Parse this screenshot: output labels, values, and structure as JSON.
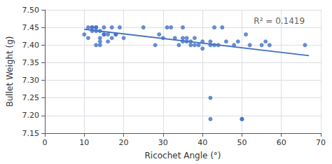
{
  "chart_data": {
    "type": "scatter",
    "xlabel": "Ricochet Angle (°)",
    "ylabel": "Bullet Weight (g)",
    "series": [
      {
        "type": "scatter",
        "color": "#4472C4",
        "x": [
          10,
          11,
          11,
          12,
          12,
          12,
          13,
          13,
          13,
          13,
          14,
          14,
          14,
          14,
          15,
          15,
          15,
          16,
          16,
          17,
          17,
          18,
          18,
          19,
          20,
          25,
          28,
          29,
          30,
          31,
          32,
          33,
          34,
          35,
          35,
          35,
          36,
          36,
          37,
          37,
          38,
          38,
          39,
          40,
          40,
          42,
          42,
          43,
          43,
          44,
          45,
          46,
          48,
          49,
          50,
          51,
          52,
          55,
          56,
          57,
          66
        ],
        "values": [
          7.43,
          7.42,
          7.45,
          7.44,
          7.45,
          7.45,
          7.44,
          7.45,
          7.45,
          7.4,
          7.42,
          7.41,
          7.4,
          7.44,
          7.45,
          7.43,
          7.43,
          7.41,
          7.43,
          7.45,
          7.42,
          7.43,
          7.43,
          7.45,
          7.42,
          7.45,
          7.4,
          7.43,
          7.42,
          7.45,
          7.45,
          7.42,
          7.4,
          7.45,
          7.42,
          7.41,
          7.41,
          7.42,
          7.41,
          7.4,
          7.42,
          7.4,
          7.4,
          7.41,
          7.39,
          7.41,
          7.4,
          7.45,
          7.4,
          7.4,
          7.45,
          7.41,
          7.4,
          7.41,
          7.19,
          7.43,
          7.4,
          7.4,
          7.41,
          7.4,
          7.4
        ]
      },
      {
        "type": "scatter",
        "color": "#4472C4",
        "x": [
          42,
          42,
          50
        ],
        "values": [
          7.25,
          7.19,
          7.19
        ]
      },
      {
        "type": "line",
        "color": "#4472C4",
        "x": [
          10,
          67
        ],
        "values": [
          7.445,
          7.37
        ]
      }
    ],
    "annotations": [
      {
        "text": "R² = 0.1419",
        "x": 53,
        "y": 7.468
      }
    ],
    "xlim": [
      0,
      70
    ],
    "ylim": [
      7.15,
      7.5
    ],
    "xticks": [
      0,
      10,
      20,
      30,
      40,
      50,
      60,
      70
    ],
    "yticks": [
      7.15,
      {
        "value": 7.2,
        "label": "7.20"
      },
      7.25,
      {
        "value": 7.3,
        "label": "7.30"
      },
      7.35,
      {
        "value": 7.4,
        "label": "7.40"
      },
      7.45,
      {
        "value": 7.5,
        "label": "7.50"
      }
    ],
    "grid": true
  }
}
